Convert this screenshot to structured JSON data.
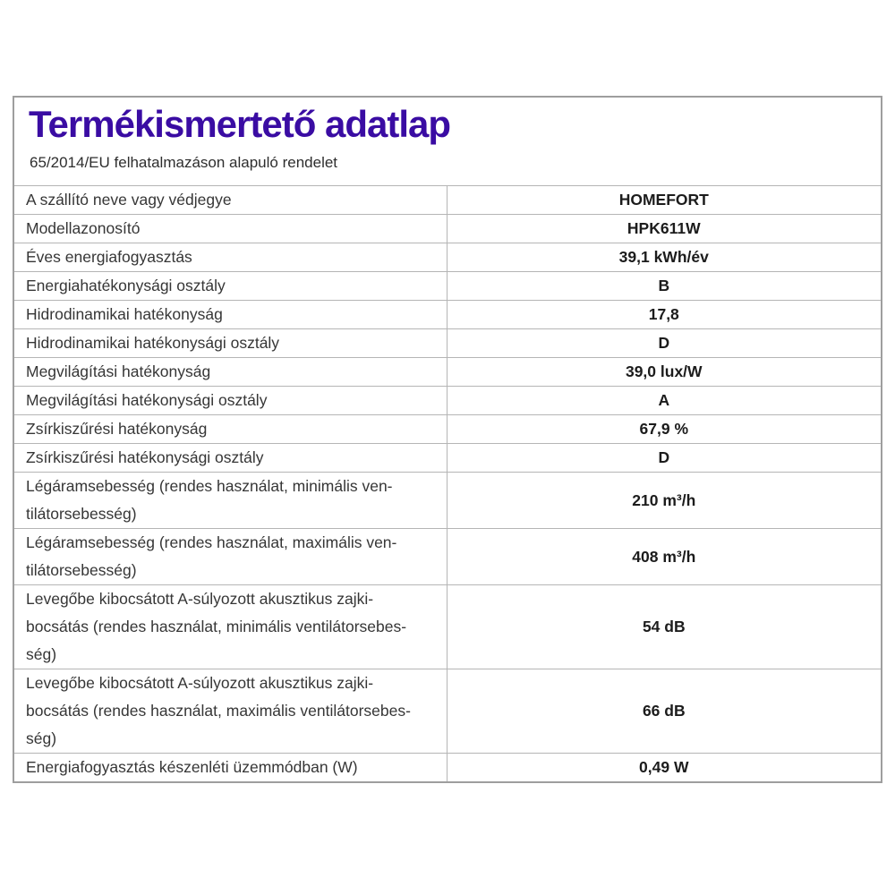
{
  "header": {
    "title": "Termékismertető adatlap",
    "subtitle": "65/2014/EU felhatalmazáson alapuló rendelet"
  },
  "colors": {
    "title": "#3a0ca3",
    "border": "#9e9e9e",
    "grid": "#b5b5b5",
    "label_text": "#363636",
    "value_text": "#1c1c1c"
  },
  "table": {
    "rows": [
      {
        "label": "A szállító neve vagy védjegye",
        "value": "HOMEFORT"
      },
      {
        "label": "Modellazonosító",
        "value": "HPK611W"
      },
      {
        "label": "Éves energiafogyasztás",
        "value": "39,1 kWh/év"
      },
      {
        "label": "Energiahatékonysági osztály",
        "value": "B"
      },
      {
        "label": "Hidrodinamikai hatékonyság",
        "value": "17,8"
      },
      {
        "label": "Hidrodinamikai hatékonysági osztály",
        "value": "D"
      },
      {
        "label": "Megvilágítási hatékonyság",
        "value": "39,0 lux/W"
      },
      {
        "label": "Megvilágítási hatékonysági osztály",
        "value": "A"
      },
      {
        "label": "Zsírkiszűrési hatékonyság",
        "value": "67,9 %"
      },
      {
        "label": "Zsírkiszűrési hatékonysági osztály",
        "value": "D"
      },
      {
        "label": "Légáramsebesség (rendes használat, minimális ven-\ntilátorsebesség)",
        "value": "210 m³/h"
      },
      {
        "label": "Légáramsebesség (rendes használat, maximális ven-\ntilátorsebesség)",
        "value": "408 m³/h"
      },
      {
        "label": "Levegőbe kibocsátott A-súlyozott akusztikus zajki-\nbocsátás (rendes használat, minimális ventilátorsebes-\nség)",
        "value": "54 dB"
      },
      {
        "label": "Levegőbe kibocsátott A-súlyozott akusztikus zajki-\nbocsátás (rendes használat, maximális ventilátorsebes-\nség)",
        "value": "66 dB"
      },
      {
        "label": "Energiafogyasztás készenléti üzemmódban (W)",
        "value": "0,49 W"
      }
    ]
  }
}
